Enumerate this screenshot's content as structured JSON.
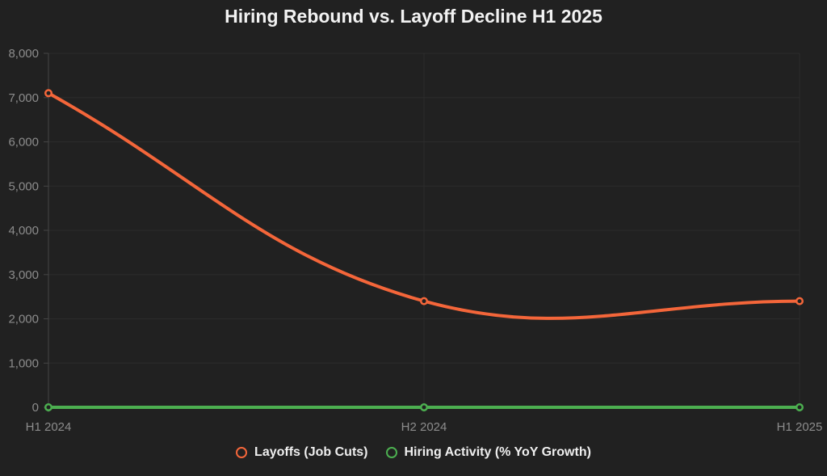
{
  "chart_data": {
    "type": "line",
    "title": "Hiring Rebound vs. Layoff Decline H1 2025",
    "categories": [
      "H1 2024",
      "H2 2024",
      "H1 2025"
    ],
    "series": [
      {
        "name": "Layoffs (Job Cuts)",
        "color": "#F4663A",
        "values": [
          7100,
          2400,
          2400
        ]
      },
      {
        "name": "Hiring Activity (% YoY Growth)",
        "color": "#4CAF50",
        "values": [
          0,
          0,
          0
        ]
      }
    ],
    "xlabel": "",
    "ylabel": "",
    "ylim": [
      0,
      8000
    ],
    "ytick_step": 1000,
    "ytick_labels": [
      "0",
      "1,000",
      "2,000",
      "3,000",
      "4,000",
      "5,000",
      "6,000",
      "7,000",
      "8,000"
    ],
    "grid": true,
    "legend_position": "bottom",
    "line_tension": 0.4,
    "point_style": "hollow-circle",
    "colors": {
      "background": "#212121",
      "gridline": "#2c2c2c",
      "axis": "#454545",
      "tick_label": "#8c8c8c",
      "title": "#f2f2f2",
      "legend_text": "#efefef"
    }
  }
}
